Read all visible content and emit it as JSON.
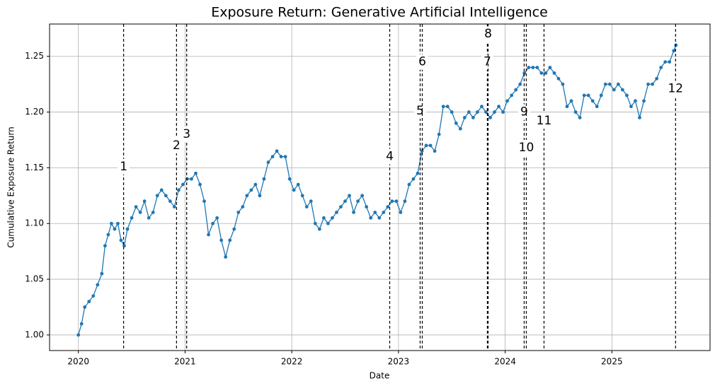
{
  "chart_data": {
    "type": "line",
    "title": "Exposure Return: Generative Artificial Intelligence",
    "x_label": "Date",
    "y_label": "Cumulative Exposure Return",
    "xlim": [
      2019.73,
      2025.92
    ],
    "ylim": [
      0.986,
      1.279
    ],
    "xticks": [
      2020,
      2021,
      2022,
      2023,
      2024,
      2025
    ],
    "yticks": [
      {
        "value": 1.0,
        "label": "1.00"
      },
      {
        "value": 1.05,
        "label": "1.05"
      },
      {
        "value": 1.1,
        "label": "1.10"
      },
      {
        "value": 1.15,
        "label": "1.15"
      },
      {
        "value": 1.2,
        "label": "1.20"
      },
      {
        "value": 1.25,
        "label": "1.25"
      }
    ],
    "grid": true,
    "x": [
      2020.0,
      2020.03,
      2020.06,
      2020.1,
      2020.14,
      2020.18,
      2020.22,
      2020.25,
      2020.28,
      2020.31,
      2020.34,
      2020.37,
      2020.4,
      2020.43,
      2020.46,
      2020.5,
      2020.54,
      2020.58,
      2020.62,
      2020.66,
      2020.7,
      2020.74,
      2020.78,
      2020.82,
      2020.86,
      2020.9,
      2020.94,
      2020.98,
      2021.02,
      2021.06,
      2021.1,
      2021.14,
      2021.18,
      2021.22,
      2021.26,
      2021.3,
      2021.34,
      2021.38,
      2021.42,
      2021.46,
      2021.5,
      2021.54,
      2021.58,
      2021.62,
      2021.66,
      2021.7,
      2021.74,
      2021.78,
      2021.82,
      2021.86,
      2021.9,
      2021.94,
      2021.98,
      2022.02,
      2022.06,
      2022.1,
      2022.14,
      2022.18,
      2022.22,
      2022.26,
      2022.3,
      2022.34,
      2022.38,
      2022.42,
      2022.46,
      2022.5,
      2022.54,
      2022.58,
      2022.62,
      2022.66,
      2022.7,
      2022.74,
      2022.78,
      2022.82,
      2022.86,
      2022.9,
      2022.94,
      2022.98,
      2023.02,
      2023.06,
      2023.1,
      2023.14,
      2023.18,
      2023.22,
      2023.26,
      2023.3,
      2023.34,
      2023.38,
      2023.42,
      2023.46,
      2023.5,
      2023.54,
      2023.58,
      2023.62,
      2023.66,
      2023.7,
      2023.74,
      2023.78,
      2023.82,
      2023.86,
      2023.9,
      2023.94,
      2023.98,
      2024.02,
      2024.06,
      2024.1,
      2024.14,
      2024.18,
      2024.22,
      2024.26,
      2024.3,
      2024.34,
      2024.38,
      2024.42,
      2024.46,
      2024.5,
      2024.54,
      2024.58,
      2024.62,
      2024.66,
      2024.7,
      2024.74,
      2024.78,
      2024.82,
      2024.86,
      2024.9,
      2024.94,
      2024.98,
      2025.02,
      2025.06,
      2025.1,
      2025.14,
      2025.18,
      2025.22,
      2025.26,
      2025.3,
      2025.34,
      2025.38,
      2025.42,
      2025.46,
      2025.5,
      2025.54,
      2025.58,
      2025.6
    ],
    "series": [
      {
        "color": "#1f77b4",
        "values": [
          1.0,
          1.01,
          1.025,
          1.03,
          1.035,
          1.045,
          1.055,
          1.08,
          1.09,
          1.1,
          1.095,
          1.1,
          1.085,
          1.08,
          1.095,
          1.105,
          1.115,
          1.11,
          1.12,
          1.105,
          1.11,
          1.125,
          1.13,
          1.125,
          1.12,
          1.115,
          1.13,
          1.135,
          1.14,
          1.14,
          1.145,
          1.135,
          1.12,
          1.09,
          1.1,
          1.105,
          1.085,
          1.07,
          1.085,
          1.095,
          1.11,
          1.115,
          1.125,
          1.13,
          1.135,
          1.125,
          1.14,
          1.155,
          1.16,
          1.165,
          1.16,
          1.16,
          1.14,
          1.13,
          1.135,
          1.125,
          1.115,
          1.12,
          1.1,
          1.095,
          1.105,
          1.1,
          1.105,
          1.11,
          1.115,
          1.12,
          1.125,
          1.11,
          1.12,
          1.125,
          1.115,
          1.105,
          1.11,
          1.105,
          1.11,
          1.115,
          1.12,
          1.12,
          1.11,
          1.12,
          1.135,
          1.14,
          1.145,
          1.165,
          1.17,
          1.17,
          1.165,
          1.18,
          1.205,
          1.205,
          1.2,
          1.19,
          1.185,
          1.195,
          1.2,
          1.195,
          1.2,
          1.205,
          1.2,
          1.195,
          1.2,
          1.205,
          1.2,
          1.21,
          1.215,
          1.22,
          1.225,
          1.235,
          1.24,
          1.24,
          1.24,
          1.235,
          1.235,
          1.24,
          1.235,
          1.23,
          1.225,
          1.205,
          1.21,
          1.2,
          1.195,
          1.215,
          1.215,
          1.21,
          1.205,
          1.215,
          1.225,
          1.225,
          1.22,
          1.225,
          1.22,
          1.215,
          1.205,
          1.21,
          1.195,
          1.21,
          1.225,
          1.225,
          1.23,
          1.24,
          1.245,
          1.245,
          1.255,
          1.26
        ]
      }
    ],
    "events": [
      {
        "label": "1",
        "x": 2020.424,
        "y": 1.151
      },
      {
        "label": "2",
        "x": 2020.92,
        "y": 1.17
      },
      {
        "label": "3",
        "x": 2021.015,
        "y": 1.18
      },
      {
        "label": "4",
        "x": 2022.918,
        "y": 1.16
      },
      {
        "label": "5",
        "x": 2023.203,
        "y": 1.201
      },
      {
        "label": "6",
        "x": 2023.223,
        "y": 1.245
      },
      {
        "label": "7",
        "x": 2023.833,
        "y": 1.245
      },
      {
        "label": "8",
        "x": 2023.84,
        "y": 1.27
      },
      {
        "label": "9",
        "x": 2024.178,
        "y": 1.2
      },
      {
        "label": "10",
        "x": 2024.198,
        "y": 1.168
      },
      {
        "label": "11",
        "x": 2024.364,
        "y": 1.192
      },
      {
        "label": "12",
        "x": 2025.597,
        "y": 1.221
      }
    ]
  }
}
